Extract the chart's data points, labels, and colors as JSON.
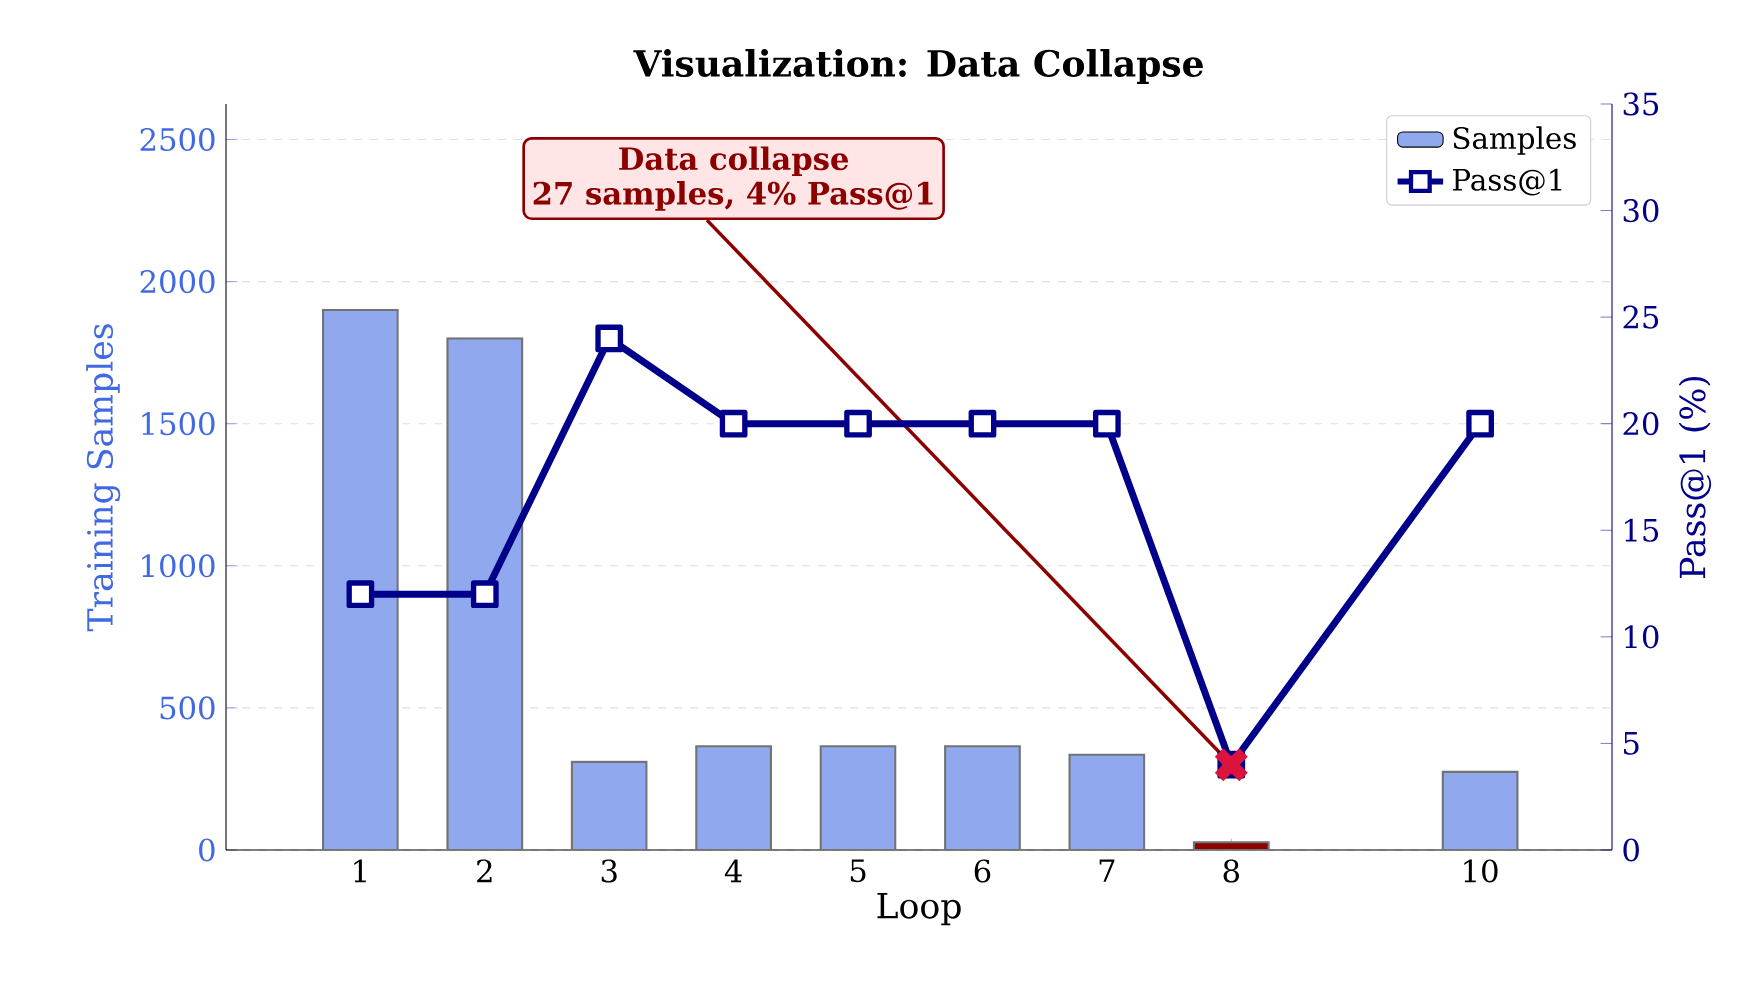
{
  "chart_data": {
    "type": "bar",
    "title": "Visualization: Data Collapse",
    "xlabel": "Loop",
    "ylabel": "Training Samples",
    "y2label": "Pass@1 (%)",
    "x": [
      1,
      2,
      3,
      4,
      5,
      6,
      7,
      8,
      10
    ],
    "series": [
      {
        "name": "Samples",
        "color": "#8fa8ee",
        "colors": [
          "#8fa8ee",
          "#8fa8ee",
          "#8fa8ee",
          "#8fa8ee",
          "#8fa8ee",
          "#8fa8ee",
          "#8fa8ee",
          "#8b0000",
          "#8fa8ee"
        ],
        "values": [
          1900,
          1800,
          310,
          365,
          365,
          365,
          335,
          27,
          275
        ]
      },
      {
        "name": "Pass@1",
        "type": "line",
        "axis": "y2",
        "color": "#00008b",
        "marker": "square",
        "values": [
          12,
          12,
          24,
          20,
          20,
          20,
          20,
          4,
          20
        ]
      },
      {
        "type": "scatter",
        "axis": "y2",
        "x": [
          8
        ],
        "color": "#dc143c",
        "marker": "cross",
        "values": [
          4
        ]
      }
    ],
    "annotations": [
      "Data collapse",
      "27 samples, 4% Pass@1"
    ],
    "xlim": [
      -0.08,
      11.06
    ],
    "xticks": [
      1,
      2,
      3,
      4,
      5,
      6,
      7,
      8,
      10
    ],
    "ylim": [
      0,
      2625
    ],
    "yticks": [
      0,
      500,
      1000,
      1500,
      2000,
      2500
    ],
    "y2lim": [
      0,
      35
    ],
    "y2ticks": [
      0,
      5,
      10,
      15,
      20,
      25,
      30,
      35
    ],
    "grid": "y",
    "legend": "top right"
  }
}
